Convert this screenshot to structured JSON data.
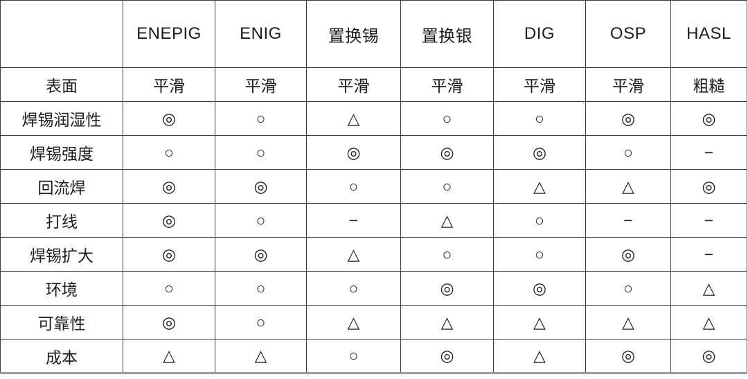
{
  "table": {
    "corner_label": "",
    "columns": [
      "ENEPIG",
      "ENIG",
      "置换锡",
      "置换银",
      "DIG",
      "OSP",
      "HASL"
    ],
    "rows": [
      {
        "label": "表面",
        "values": [
          "平滑",
          "平滑",
          "平滑",
          "平滑",
          "平滑",
          "平滑",
          "粗糙"
        ]
      },
      {
        "label": "焊锡润湿性",
        "values": [
          "◎",
          "○",
          "△",
          "○",
          "○",
          "◎",
          "◎"
        ]
      },
      {
        "label": "焊锡强度",
        "values": [
          "○",
          "○",
          "◎",
          "◎",
          "◎",
          "○",
          "−"
        ]
      },
      {
        "label": "回流焊",
        "values": [
          "◎",
          "◎",
          "○",
          "○",
          "△",
          "△",
          "◎"
        ]
      },
      {
        "label": "打线",
        "values": [
          "◎",
          "○",
          "−",
          "△",
          "○",
          "−",
          "−"
        ]
      },
      {
        "label": "焊锡扩大",
        "values": [
          "◎",
          "◎",
          "△",
          "○",
          "○",
          "◎",
          "−"
        ]
      },
      {
        "label": "环境",
        "values": [
          "○",
          "○",
          "○",
          "◎",
          "◎",
          "○",
          "△"
        ]
      },
      {
        "label": "可靠性",
        "values": [
          "◎",
          "○",
          "△",
          "△",
          "△",
          "△",
          "△"
        ]
      },
      {
        "label": "成本",
        "values": [
          "△",
          "△",
          "○",
          "◎",
          "△",
          "◎",
          "◎"
        ]
      }
    ],
    "legend_symbols": {
      "excellent": "◎",
      "good": "○",
      "fair": "△",
      "not-applicable": "−"
    }
  },
  "colors": {
    "border": "#3a3a3a",
    "text": "#1c1c1c",
    "background": "#ffffff",
    "bottom_rule": "#9a9a9a"
  }
}
